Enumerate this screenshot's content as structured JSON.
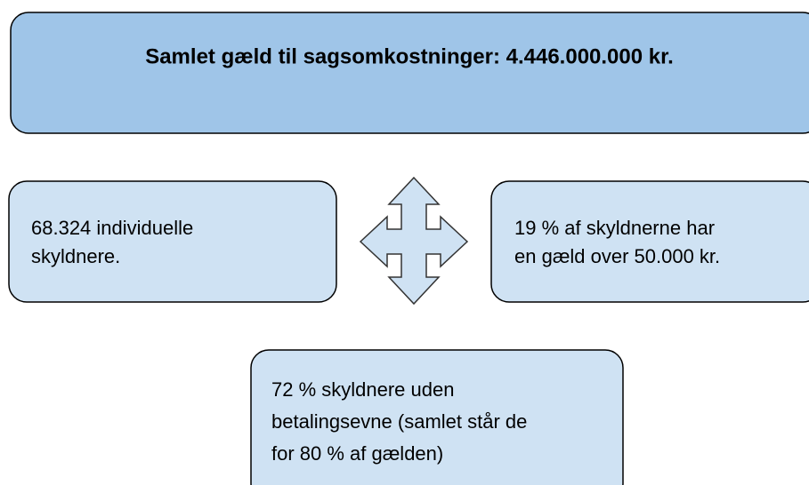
{
  "header": {
    "title": "Samlet gæld til sagsomkostninger: 4.446.000.000 kr."
  },
  "boxes": [
    {
      "lines": [
        "68.324 individuelle",
        "skyldnere."
      ]
    },
    {
      "lines": [
        "19 % af skyldnerne har",
        "en gæld over 50.000 kr."
      ]
    },
    {
      "lines": [
        "72 % skyldnere uden",
        "betalingsevne (samlet står de",
        "for 80 % af gælden)"
      ]
    }
  ]
}
